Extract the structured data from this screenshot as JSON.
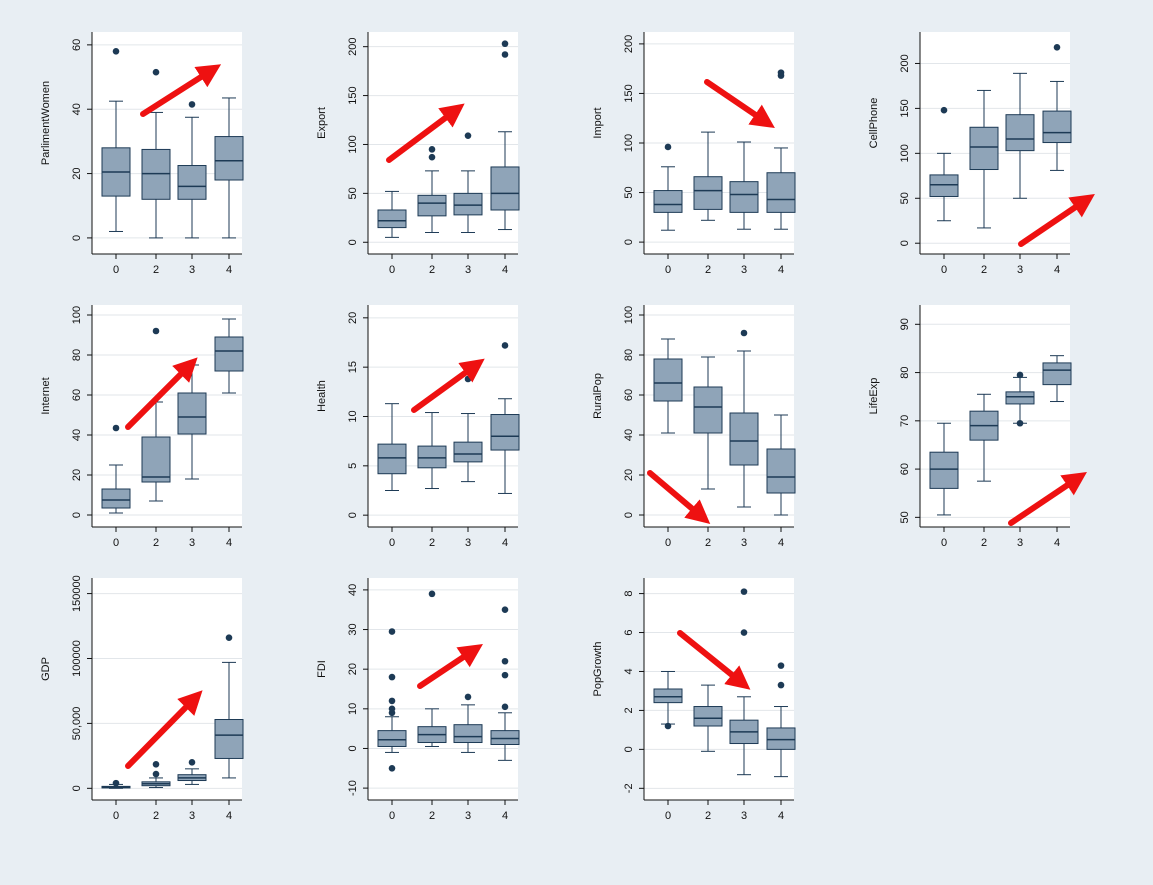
{
  "colors": {
    "background": "#e8eef3",
    "panel": "#ffffff",
    "box_fill": "#8fa4b8",
    "box_stroke": "#1d3a55",
    "grid": "#e2e6ea",
    "arrow": "#ee1111"
  },
  "chart_data": [
    {
      "type": "box",
      "ylabel": "ParlimentWomen",
      "categories": [
        "0",
        "2",
        "3",
        "4"
      ],
      "yticks": [
        0,
        20,
        40,
        60
      ],
      "ytick_labels": [
        "0",
        "20",
        "40",
        "60"
      ],
      "ylim": [
        -5,
        64
      ],
      "boxes": [
        {
          "min": 2,
          "q1": 13,
          "median": 20.5,
          "q3": 28,
          "max": 42.5,
          "outliers": [
            58
          ]
        },
        {
          "min": 0,
          "q1": 12,
          "median": 20,
          "q3": 27.5,
          "max": 39,
          "outliers": [
            51.5
          ]
        },
        {
          "min": 0,
          "q1": 12,
          "median": 16,
          "q3": 22.5,
          "max": 37.5,
          "outliers": [
            41.5
          ]
        },
        {
          "min": 0,
          "q1": 18,
          "median": 24,
          "q3": 31.5,
          "max": 43.5,
          "outliers": []
        }
      ],
      "arrow": "up"
    },
    {
      "type": "box",
      "ylabel": "Export",
      "categories": [
        "0",
        "2",
        "3",
        "4"
      ],
      "yticks": [
        0,
        50,
        100,
        150,
        200
      ],
      "ytick_labels": [
        "0",
        "50",
        "100",
        "150",
        "200"
      ],
      "ylim": [
        -12,
        215
      ],
      "boxes": [
        {
          "min": 5,
          "q1": 15,
          "median": 22,
          "q3": 33,
          "max": 52,
          "outliers": []
        },
        {
          "min": 10,
          "q1": 27,
          "median": 40,
          "q3": 48,
          "max": 73,
          "outliers": [
            87,
            95
          ]
        },
        {
          "min": 10,
          "q1": 28,
          "median": 38,
          "q3": 50,
          "max": 73,
          "outliers": [
            109
          ]
        },
        {
          "min": 13,
          "q1": 33,
          "median": 50,
          "q3": 77,
          "max": 113,
          "outliers": [
            192,
            203
          ]
        }
      ],
      "arrow": "up"
    },
    {
      "type": "box",
      "ylabel": "Import",
      "categories": [
        "0",
        "2",
        "3",
        "4"
      ],
      "yticks": [
        0,
        50,
        100,
        150,
        200
      ],
      "ytick_labels": [
        "0",
        "50",
        "100",
        "150",
        "200"
      ],
      "ylim": [
        -12,
        212
      ],
      "boxes": [
        {
          "min": 12,
          "q1": 30,
          "median": 38,
          "q3": 52,
          "max": 76,
          "outliers": [
            96
          ]
        },
        {
          "min": 22,
          "q1": 33,
          "median": 52,
          "q3": 66,
          "max": 111,
          "outliers": []
        },
        {
          "min": 13,
          "q1": 30,
          "median": 48,
          "q3": 61,
          "max": 101,
          "outliers": []
        },
        {
          "min": 13,
          "q1": 30,
          "median": 43,
          "q3": 70,
          "max": 95,
          "outliers": [
            168,
            171
          ]
        }
      ],
      "arrow": "down"
    },
    {
      "type": "box",
      "ylabel": "CellPhone",
      "categories": [
        "0",
        "2",
        "3",
        "4"
      ],
      "yticks": [
        0,
        50,
        100,
        150,
        200
      ],
      "ytick_labels": [
        "0",
        "50",
        "100",
        "150",
        "200"
      ],
      "ylim": [
        -12,
        235
      ],
      "boxes": [
        {
          "min": 25,
          "q1": 52,
          "median": 65,
          "q3": 76,
          "max": 100,
          "outliers": [
            148
          ]
        },
        {
          "min": 17,
          "q1": 82,
          "median": 107,
          "q3": 129,
          "max": 170,
          "outliers": []
        },
        {
          "min": 50,
          "q1": 103,
          "median": 116,
          "q3": 143,
          "max": 189,
          "outliers": []
        },
        {
          "min": 81,
          "q1": 112,
          "median": 123,
          "q3": 147,
          "max": 180,
          "outliers": [
            218
          ]
        }
      ],
      "arrow": "up"
    },
    {
      "type": "box",
      "ylabel": "Internet",
      "categories": [
        "0",
        "2",
        "3",
        "4"
      ],
      "yticks": [
        0,
        20,
        40,
        60,
        80,
        100
      ],
      "ytick_labels": [
        "0",
        "20",
        "40",
        "60",
        "80",
        "100"
      ],
      "ylim": [
        -6,
        105
      ],
      "boxes": [
        {
          "min": 1,
          "q1": 3.5,
          "median": 7.5,
          "q3": 13,
          "max": 25,
          "outliers": [
            43.5
          ]
        },
        {
          "min": 7,
          "q1": 16.5,
          "median": 19,
          "q3": 39,
          "max": 56.5,
          "outliers": [
            92
          ]
        },
        {
          "min": 18,
          "q1": 40.5,
          "median": 49,
          "q3": 61,
          "max": 75,
          "outliers": []
        },
        {
          "min": 61,
          "q1": 72,
          "median": 82,
          "q3": 89,
          "max": 98,
          "outliers": []
        }
      ],
      "arrow": "up"
    },
    {
      "type": "box",
      "ylabel": "Health",
      "categories": [
        "0",
        "2",
        "3",
        "4"
      ],
      "yticks": [
        0,
        5,
        10,
        15,
        20
      ],
      "ytick_labels": [
        "0",
        "5",
        "10",
        "15",
        "20"
      ],
      "ylim": [
        -1.2,
        21.3
      ],
      "boxes": [
        {
          "min": 2.5,
          "q1": 4.2,
          "median": 5.8,
          "q3": 7.2,
          "max": 11.3,
          "outliers": []
        },
        {
          "min": 2.7,
          "q1": 4.8,
          "median": 5.8,
          "q3": 7,
          "max": 10.4,
          "outliers": []
        },
        {
          "min": 3.4,
          "q1": 5.4,
          "median": 6.2,
          "q3": 7.4,
          "max": 10.3,
          "outliers": [
            13.8
          ]
        },
        {
          "min": 2.2,
          "q1": 6.6,
          "median": 8,
          "q3": 10.2,
          "max": 11.8,
          "outliers": [
            17.2
          ]
        }
      ],
      "arrow": "up"
    },
    {
      "type": "box",
      "ylabel": "RuralPop",
      "categories": [
        "0",
        "2",
        "3",
        "4"
      ],
      "yticks": [
        0,
        20,
        40,
        60,
        80,
        100
      ],
      "ytick_labels": [
        "0",
        "20",
        "40",
        "60",
        "80",
        "100"
      ],
      "ylim": [
        -6,
        105
      ],
      "boxes": [
        {
          "min": 41,
          "q1": 57,
          "median": 66,
          "q3": 78,
          "max": 88,
          "outliers": []
        },
        {
          "min": 13,
          "q1": 41,
          "median": 54,
          "q3": 64,
          "max": 79,
          "outliers": []
        },
        {
          "min": 4,
          "q1": 25,
          "median": 37,
          "q3": 51,
          "max": 82,
          "outliers": [
            91
          ]
        },
        {
          "min": 0,
          "q1": 11,
          "median": 19,
          "q3": 33,
          "max": 50,
          "outliers": []
        }
      ],
      "arrow": "down"
    },
    {
      "type": "box",
      "ylabel": "LifeExp",
      "categories": [
        "0",
        "2",
        "3",
        "4"
      ],
      "yticks": [
        50,
        60,
        70,
        80,
        90
      ],
      "ytick_labels": [
        "50",
        "60",
        "70",
        "80",
        "90"
      ],
      "ylim": [
        48,
        94
      ],
      "boxes": [
        {
          "min": 50.5,
          "q1": 56,
          "median": 60,
          "q3": 63.5,
          "max": 69.5,
          "outliers": []
        },
        {
          "min": 57.5,
          "q1": 66,
          "median": 69,
          "q3": 72,
          "max": 75.5,
          "outliers": []
        },
        {
          "min": 69.5,
          "q1": 73.5,
          "median": 75,
          "q3": 76,
          "max": 79,
          "outliers": [
            69.5,
            79.5
          ]
        },
        {
          "min": 74,
          "q1": 77.5,
          "median": 80.5,
          "q3": 82,
          "max": 83.5,
          "outliers": []
        }
      ],
      "arrow": "up"
    },
    {
      "type": "box",
      "ylabel": "GDP",
      "categories": [
        "0",
        "2",
        "3",
        "4"
      ],
      "yticks": [
        0,
        50000,
        100000,
        150000
      ],
      "ytick_labels": [
        "0",
        "50,000",
        "100000",
        "150000"
      ],
      "ylim": [
        -9000,
        162000
      ],
      "boxes": [
        {
          "min": 0,
          "q1": 300,
          "median": 800,
          "q3": 1500,
          "max": 3000,
          "outliers": [
            4000
          ]
        },
        {
          "min": 600,
          "q1": 2000,
          "median": 3500,
          "q3": 5000,
          "max": 8000,
          "outliers": [
            11000,
            18500
          ]
        },
        {
          "min": 3000,
          "q1": 6000,
          "median": 8000,
          "q3": 10500,
          "max": 15000,
          "outliers": [
            20000
          ]
        },
        {
          "min": 8000,
          "q1": 23000,
          "median": 41000,
          "q3": 53000,
          "max": 97000,
          "outliers": [
            116000
          ]
        }
      ],
      "arrow": "up"
    },
    {
      "type": "box",
      "ylabel": "FDI",
      "categories": [
        "0",
        "2",
        "3",
        "4"
      ],
      "yticks": [
        -10,
        0,
        10,
        20,
        30,
        40
      ],
      "ytick_labels": [
        "-10",
        "0",
        "10",
        "20",
        "30",
        "40"
      ],
      "ylim": [
        -13,
        43
      ],
      "boxes": [
        {
          "min": -1,
          "q1": 0.5,
          "median": 2.2,
          "q3": 4.5,
          "max": 8,
          "outliers": [
            -5,
            9,
            10,
            12,
            18,
            29.5
          ]
        },
        {
          "min": 0.5,
          "q1": 1.5,
          "median": 3.5,
          "q3": 5.5,
          "max": 10,
          "outliers": [
            39
          ]
        },
        {
          "min": -1,
          "q1": 1.5,
          "median": 3,
          "q3": 6,
          "max": 11,
          "outliers": [
            13
          ]
        },
        {
          "min": -3,
          "q1": 1,
          "median": 2.5,
          "q3": 4.5,
          "max": 9,
          "outliers": [
            10.5,
            18.5,
            22,
            35
          ]
        }
      ],
      "arrow": "up"
    },
    {
      "type": "box",
      "ylabel": "PopGrowth",
      "categories": [
        "0",
        "2",
        "3",
        "4"
      ],
      "yticks": [
        -2,
        0,
        2,
        4,
        6,
        8
      ],
      "ytick_labels": [
        "-2",
        "0",
        "2",
        "4",
        "6",
        "8"
      ],
      "ylim": [
        -2.6,
        8.8
      ],
      "boxes": [
        {
          "min": 1.3,
          "q1": 2.4,
          "median": 2.7,
          "q3": 3.1,
          "max": 4,
          "outliers": [
            1.2
          ]
        },
        {
          "min": -0.1,
          "q1": 1.2,
          "median": 1.6,
          "q3": 2.2,
          "max": 3.3,
          "outliers": []
        },
        {
          "min": -1.3,
          "q1": 0.3,
          "median": 0.9,
          "q3": 1.5,
          "max": 2.7,
          "outliers": [
            6,
            8.1
          ]
        },
        {
          "min": -1.4,
          "q1": 0,
          "median": 0.5,
          "q3": 1.1,
          "max": 2.2,
          "outliers": [
            3.3,
            4.3
          ]
        }
      ],
      "arrow": "down"
    }
  ]
}
